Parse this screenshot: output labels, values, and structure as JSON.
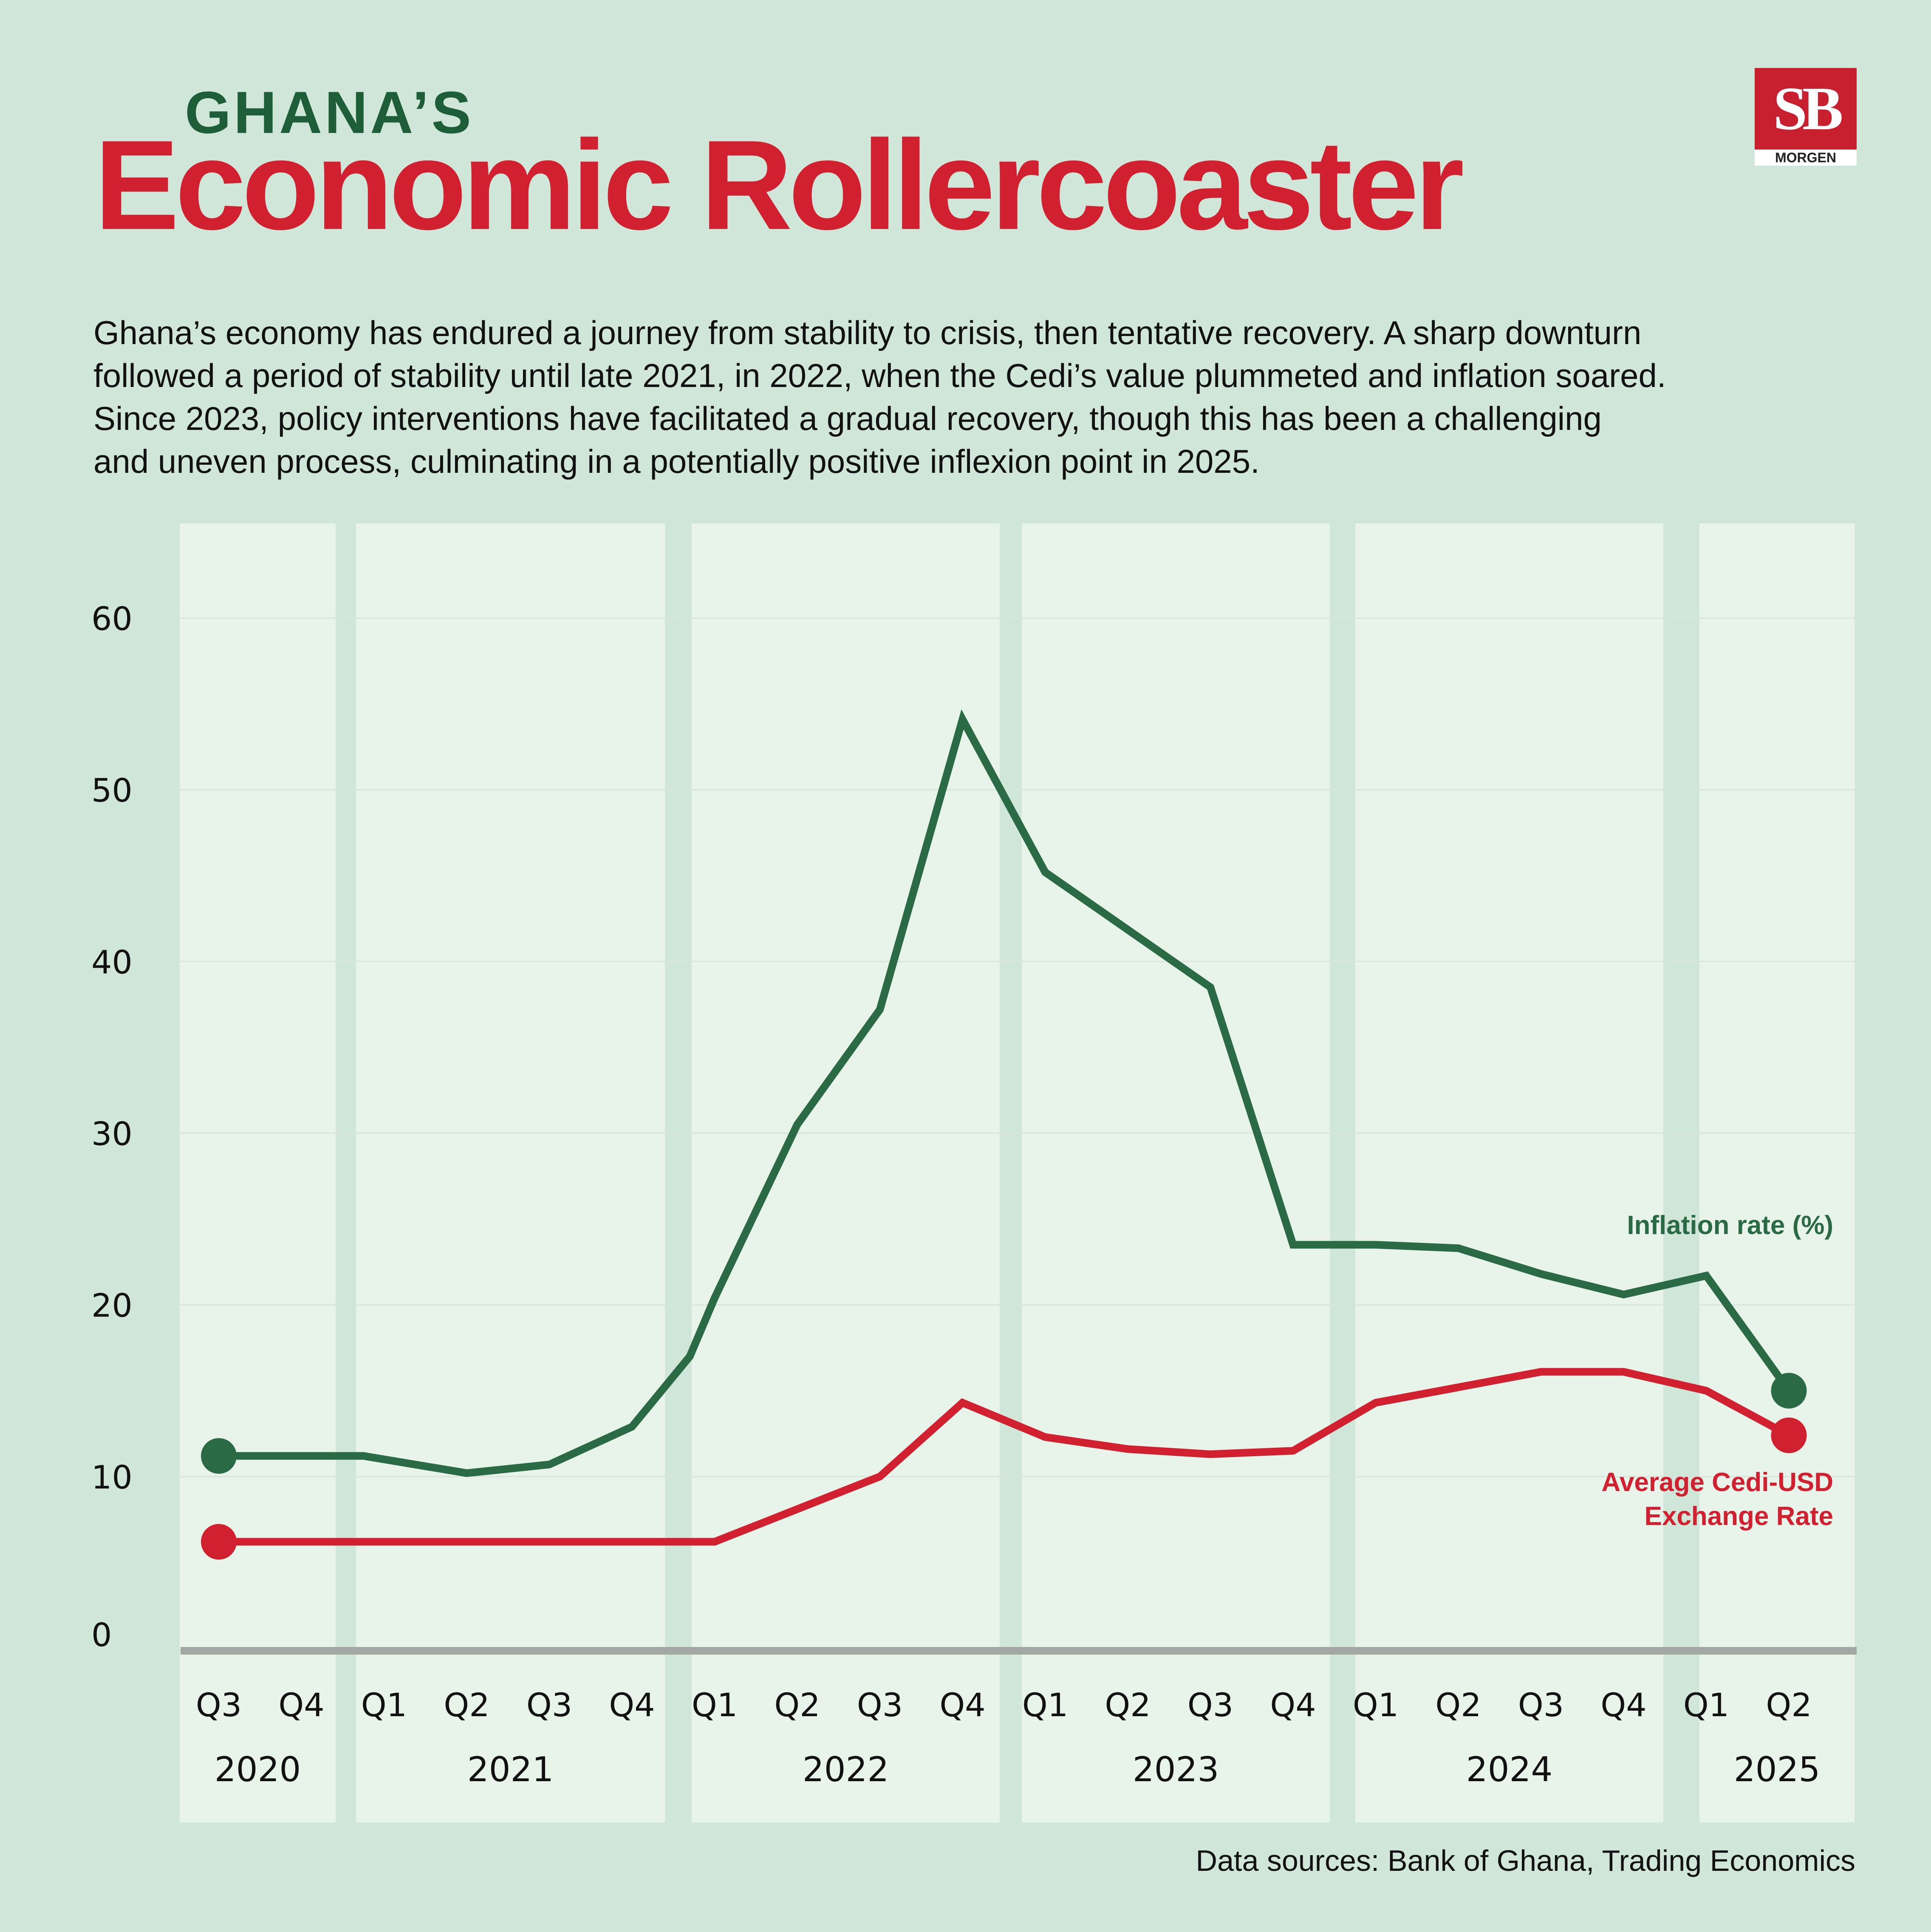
{
  "header": {
    "pre_title": "GHANA’S",
    "title": "Economic Rollercoaster"
  },
  "logo": {
    "mark": "SB",
    "word": "MORGEN"
  },
  "intro_lines": [
    "Ghana’s economy has endured a journey from stability to crisis, then tentative recovery. A sharp downturn",
    "followed a period of stability until late 2021, in 2022, when the Cedi’s value plummeted and inflation soared.",
    "Since 2023, policy interventions have facilitated a gradual recovery, though this has been a challenging",
    "and uneven process, culminating in a potentially positive inflexion point in 2025."
  ],
  "source": "Data sources: Bank of Ghana, Trading Economics",
  "colors": {
    "background": "#cfe6d8",
    "band": "#e8f3e9",
    "inflation": "#2a6b45",
    "exchange": "#d1202f",
    "axis": "#a3a8a5"
  },
  "chart_data": {
    "type": "line",
    "ylim": [
      0,
      60
    ],
    "yticks": [
      0,
      10,
      20,
      30,
      40,
      50,
      60
    ],
    "grid": true,
    "legend": "inline-right",
    "years": [
      {
        "year": "2020",
        "quarters": [
          "Q3",
          "Q4"
        ]
      },
      {
        "year": "2021",
        "quarters": [
          "Q1",
          "Q2",
          "Q3",
          "Q4"
        ]
      },
      {
        "year": "2022",
        "quarters": [
          "Q1",
          "Q2",
          "Q3",
          "Q4"
        ]
      },
      {
        "year": "2023",
        "quarters": [
          "Q1",
          "Q2",
          "Q3",
          "Q4"
        ]
      },
      {
        "year": "2024",
        "quarters": [
          "Q1",
          "Q2",
          "Q3",
          "Q4"
        ]
      },
      {
        "year": "2025",
        "quarters": [
          "Q1",
          "Q2"
        ]
      }
    ],
    "series": [
      {
        "name": "Inflation rate (%)",
        "color": "#2a6b45",
        "points": [
          {
            "x": 0.0,
            "y": 11.2
          },
          {
            "x": 1.75,
            "y": 11.2
          },
          {
            "x": 3.0,
            "y": 10.2
          },
          {
            "x": 4.0,
            "y": 10.7
          },
          {
            "x": 5.0,
            "y": 12.9
          },
          {
            "x": 5.7,
            "y": 17.0
          },
          {
            "x": 6.0,
            "y": 20.4
          },
          {
            "x": 7.0,
            "y": 30.5
          },
          {
            "x": 8.0,
            "y": 37.2
          },
          {
            "x": 9.0,
            "y": 54.1
          },
          {
            "x": 10.0,
            "y": 45.2
          },
          {
            "x": 12.0,
            "y": 38.5
          },
          {
            "x": 13.0,
            "y": 23.5
          },
          {
            "x": 14.0,
            "y": 23.5
          },
          {
            "x": 15.0,
            "y": 23.3
          },
          {
            "x": 16.0,
            "y": 21.8
          },
          {
            "x": 17.0,
            "y": 20.6
          },
          {
            "x": 18.0,
            "y": 21.7
          },
          {
            "x": 19.0,
            "y": 15.0
          }
        ]
      },
      {
        "name": "Average Cedi-USD Exchange Rate",
        "color": "#d1202f",
        "points": [
          {
            "x": 0.0,
            "y": 6.2
          },
          {
            "x": 6.0,
            "y": 6.2
          },
          {
            "x": 8.0,
            "y": 10.0
          },
          {
            "x": 9.0,
            "y": 14.3
          },
          {
            "x": 10.0,
            "y": 12.3
          },
          {
            "x": 11.0,
            "y": 11.6
          },
          {
            "x": 12.0,
            "y": 11.3
          },
          {
            "x": 13.0,
            "y": 11.5
          },
          {
            "x": 14.0,
            "y": 14.3
          },
          {
            "x": 15.0,
            "y": 15.2
          },
          {
            "x": 16.0,
            "y": 16.1
          },
          {
            "x": 17.0,
            "y": 16.1
          },
          {
            "x": 18.0,
            "y": 15.0
          },
          {
            "x": 19.0,
            "y": 12.4
          }
        ]
      }
    ],
    "series_labels": [
      {
        "lines": [
          "Inflation rate (%)"
        ],
        "color": "#2a6b45"
      },
      {
        "lines": [
          "Average Cedi-USD",
          "Exchange Rate"
        ],
        "color": "#d1202f"
      }
    ]
  }
}
